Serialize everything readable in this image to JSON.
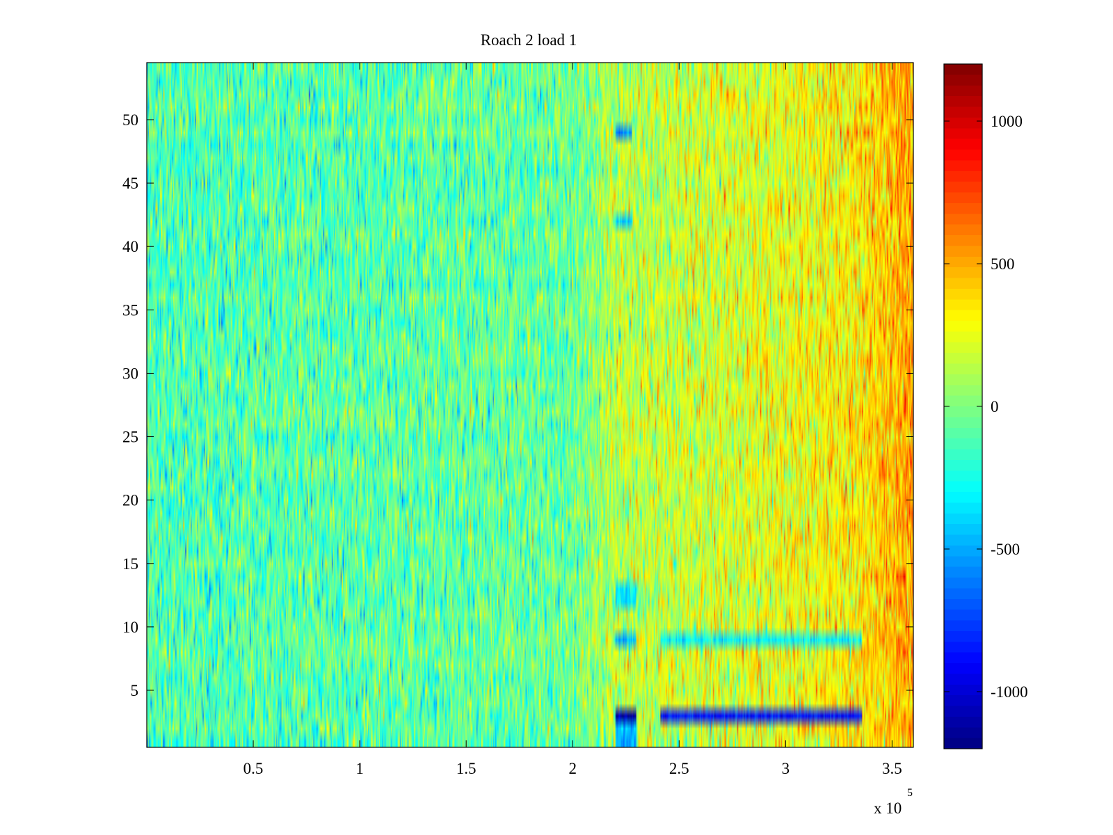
{
  "chart_data": {
    "type": "heatmap",
    "title": "Roach 2 load 1",
    "xlabel": "",
    "ylabel": "",
    "x_multiplier_label": "x 10",
    "x_multiplier_exponent": "5",
    "xlim": [
      0,
      360000
    ],
    "ylim": [
      0.5,
      54.5
    ],
    "x_ticks": [
      50000,
      100000,
      150000,
      200000,
      250000,
      300000,
      350000
    ],
    "x_tick_labels": [
      "0.5",
      "1",
      "1.5",
      "2",
      "2.5",
      "3",
      "3.5"
    ],
    "y_ticks": [
      5,
      10,
      15,
      20,
      25,
      30,
      35,
      40,
      45,
      50
    ],
    "y_tick_labels": [
      "5",
      "10",
      "15",
      "20",
      "25",
      "30",
      "35",
      "40",
      "45",
      "50"
    ],
    "rows": 54,
    "colormap": "jet",
    "clim": [
      -1200,
      1200
    ],
    "colorbar": {
      "ticks": [
        -1000,
        -500,
        0,
        500,
        1000
      ],
      "tick_labels": [
        "-1000",
        "-500",
        "0",
        "500",
        "1000"
      ]
    },
    "value_trend": [
      {
        "x": 0,
        "mean": -120
      },
      {
        "x": 100000,
        "mean": -100
      },
      {
        "x": 200000,
        "mean": -60
      },
      {
        "x": 220000,
        "mean": 120
      },
      {
        "x": 300000,
        "mean": 250
      },
      {
        "x": 335000,
        "mean": 330
      },
      {
        "x": 360000,
        "mean": 520
      }
    ],
    "features": [
      {
        "rows": [
          3,
          3
        ],
        "x_range": [
          220000,
          230000
        ],
        "value": -1100
      },
      {
        "rows": [
          3,
          3
        ],
        "x_range": [
          241000,
          336000
        ],
        "value": -850
      },
      {
        "rows": [
          9,
          9
        ],
        "x_range": [
          220000,
          230000
        ],
        "value": -500
      },
      {
        "rows": [
          9,
          9
        ],
        "x_range": [
          241000,
          336000
        ],
        "value": -300
      },
      {
        "rows": [
          49,
          49
        ],
        "x_range": [
          220000,
          228000
        ],
        "value": -550
      },
      {
        "rows": [
          12,
          13
        ],
        "x_range": [
          220000,
          230000
        ],
        "value": -350
      },
      {
        "rows": [
          42,
          42
        ],
        "x_range": [
          220000,
          228000
        ],
        "value": -400
      },
      {
        "rows": [
          1,
          2
        ],
        "x_range": [
          220000,
          230000
        ],
        "value": -450
      }
    ]
  }
}
